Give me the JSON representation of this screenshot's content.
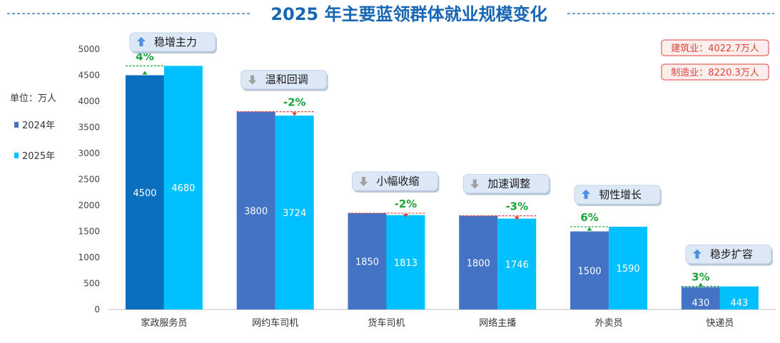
{
  "chart_data": {
    "type": "bar",
    "title": "2025 年主要蓝领群体就业规模变化",
    "unit_label": "单位：万人",
    "categories": [
      "家政服务员",
      "网约车司机",
      "货车司机",
      "网络主播",
      "外卖员",
      "快递员"
    ],
    "series": [
      {
        "name": "2024年",
        "values": [
          4500,
          3800,
          1850,
          1800,
          1500,
          430
        ],
        "color": "#4472c4"
      },
      {
        "name": "2025年",
        "values": [
          4680,
          3724,
          1813,
          1746,
          1590,
          443
        ],
        "color": "#00c0ff"
      }
    ],
    "highlight_color_2024": "#0b6fbf",
    "changes": [
      "4%",
      "-2%",
      "-2%",
      "-3%",
      "6%",
      "3%"
    ],
    "change_direction": [
      "up",
      "down",
      "down",
      "down",
      "up",
      "up"
    ],
    "trend_labels": [
      "稳增主力",
      "温和回调",
      "小幅收缩",
      "加速调整",
      "韧性增长",
      "稳步扩容"
    ],
    "ylim": [
      0,
      5000
    ],
    "yticks": [
      0,
      500,
      1000,
      1500,
      2000,
      2500,
      3000,
      3500,
      4000,
      4500,
      5000
    ],
    "notes": [
      "建筑业：4022.7万人",
      "制造业：8220.3万人"
    ],
    "legend_placement": "left",
    "grid": false,
    "colors": {
      "title": "#1766b3",
      "up_arrow": "#4a90e2",
      "down_arrow": "#a0a0a0",
      "up_marker": "#1aa33a",
      "down_marker": "#e0403a",
      "badge_fill": "#dde8f7"
    }
  }
}
